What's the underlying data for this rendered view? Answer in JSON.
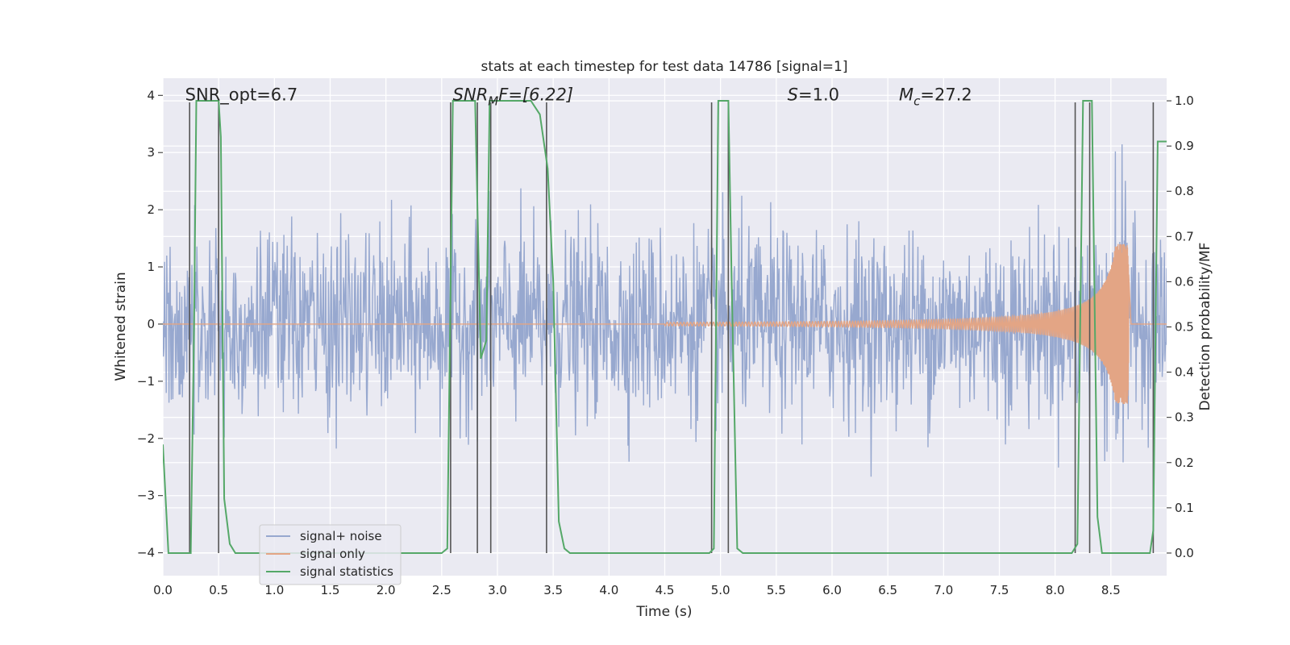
{
  "chart_data": {
    "type": "line",
    "title": "stats at each timestep for test data 14786 [signal=1]",
    "xlabel": "Time (s)",
    "ylabel_left": "Whitened strain",
    "ylabel_right": "Detection probability/MF",
    "xlim": [
      0.0,
      9.0
    ],
    "ylim_left": [
      -4.4,
      4.3
    ],
    "ylim_right": [
      -0.05,
      1.05
    ],
    "grid": true,
    "x_ticks": [
      "0.0",
      "0.5",
      "1.0",
      "1.5",
      "2.0",
      "2.5",
      "3.0",
      "3.5",
      "4.0",
      "4.5",
      "5.0",
      "5.5",
      "6.0",
      "6.5",
      "7.0",
      "7.5",
      "8.0",
      "8.5"
    ],
    "y_ticks_left": [
      "−4",
      "−3",
      "−2",
      "−1",
      "0",
      "1",
      "2",
      "3",
      "4"
    ],
    "y_ticks_right": [
      "0.0",
      "0.1",
      "0.2",
      "0.3",
      "0.4",
      "0.5",
      "0.6",
      "0.7",
      "0.8",
      "0.9",
      "1.0"
    ],
    "annotations": [
      {
        "text": "SNR_opt=6.7",
        "x": 0.2,
        "y": 4.0
      },
      {
        "text": "SNR",
        "sub": "M",
        "rest": "F=[6.22]",
        "x": 2.6,
        "y": 4.0
      },
      {
        "text": "S",
        "rest": "=1.0",
        "x": 5.6,
        "y": 4.0
      },
      {
        "text": "M",
        "sub": "c",
        "rest": "=27.2",
        "x": 6.6,
        "y": 4.0
      }
    ],
    "legend_position": "lower-left",
    "series": [
      {
        "name": "signal+ noise",
        "color": "#97a8cf",
        "axis": "left",
        "sample_rate": 200,
        "duration": 9.0,
        "noise_sigma": 0.8
      },
      {
        "name": "signal only",
        "color": "#e3a585",
        "axis": "left",
        "chirp": {
          "start": 4.5,
          "merger": 8.65,
          "end": 8.68,
          "start_amp": 0.03,
          "peak_amp": 1.4
        }
      },
      {
        "name": "signal statistics",
        "color": "#55a868",
        "axis": "right",
        "x": [
          0.0,
          0.05,
          0.1,
          0.15,
          0.2,
          0.25,
          0.28,
          0.3,
          0.35,
          0.4,
          0.45,
          0.5,
          0.52,
          0.55,
          0.6,
          0.65,
          0.7,
          0.8,
          0.9,
          1.0,
          1.5,
          2.0,
          2.5,
          2.55,
          2.6,
          2.65,
          2.7,
          2.75,
          2.8,
          2.85,
          2.9,
          2.93,
          2.97,
          3.0,
          3.1,
          3.2,
          3.3,
          3.38,
          3.45,
          3.5,
          3.55,
          3.6,
          3.65,
          3.7,
          3.8,
          4.0,
          4.5,
          4.9,
          4.94,
          4.98,
          5.0,
          5.03,
          5.07,
          5.1,
          5.15,
          5.2,
          5.5,
          6.0,
          6.5,
          7.0,
          7.5,
          8.0,
          8.15,
          8.2,
          8.25,
          8.3,
          8.33,
          8.38,
          8.42,
          8.5,
          8.6,
          8.7,
          8.8,
          8.85,
          8.88,
          8.92,
          8.96,
          9.0
        ],
        "y": [
          0.24,
          0.0,
          0.0,
          0.0,
          0.0,
          0.0,
          0.5,
          1.0,
          1.0,
          1.0,
          1.0,
          1.0,
          0.92,
          0.12,
          0.02,
          0.0,
          0.0,
          0.0,
          0.0,
          0.0,
          0.0,
          0.0,
          0.0,
          0.01,
          1.0,
          1.0,
          1.0,
          1.0,
          1.0,
          0.43,
          0.47,
          1.0,
          1.0,
          1.0,
          1.0,
          1.0,
          1.0,
          0.97,
          0.85,
          0.6,
          0.07,
          0.01,
          0.0,
          0.0,
          0.0,
          0.0,
          0.0,
          0.0,
          0.01,
          1.0,
          1.0,
          1.0,
          1.0,
          0.6,
          0.01,
          0.0,
          0.0,
          0.0,
          0.0,
          0.0,
          0.0,
          0.0,
          0.0,
          0.02,
          1.0,
          1.0,
          1.0,
          0.08,
          0.0,
          0.0,
          0.0,
          0.0,
          0.0,
          0.0,
          0.05,
          0.91,
          0.91,
          0.91
        ]
      }
    ],
    "vertical_markers": [
      0.24,
      0.5,
      2.58,
      2.82,
      2.94,
      3.44,
      4.92,
      5.07,
      8.18,
      8.31,
      8.88
    ]
  }
}
